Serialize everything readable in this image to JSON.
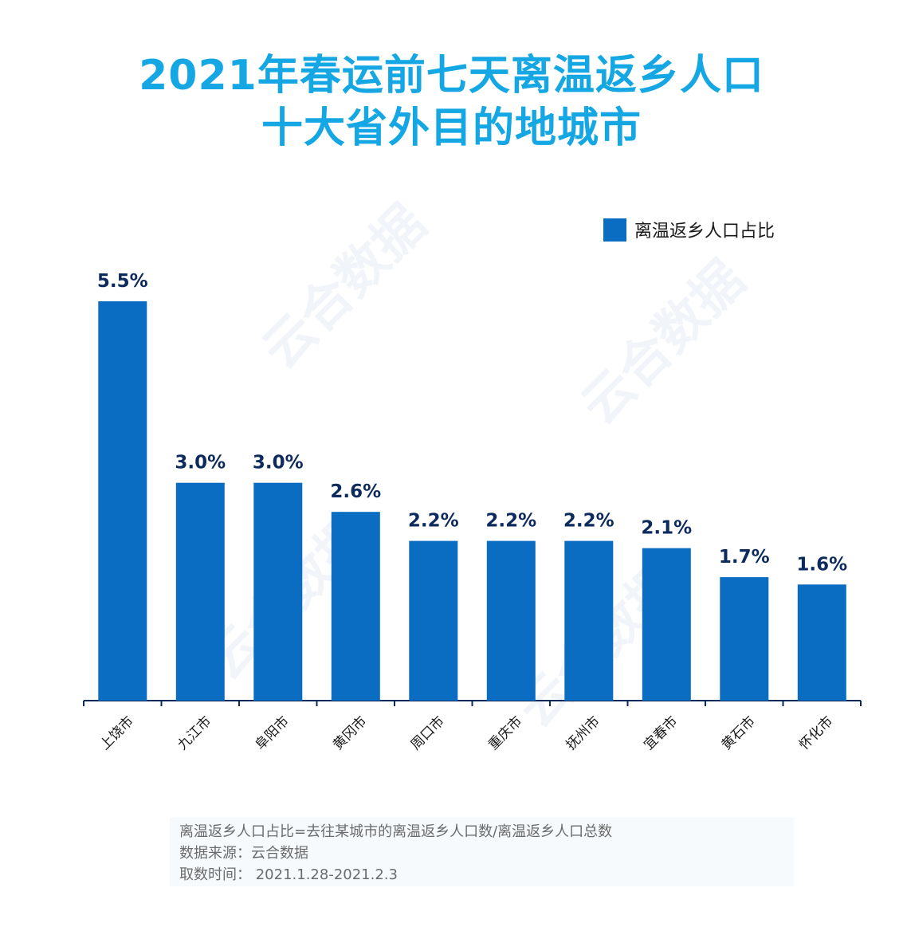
{
  "title_lines": [
    "2021年春运前七天离温返乡人口",
    "十大省外目的地城市"
  ],
  "watermark_text": "云合数据",
  "chart_data": {
    "type": "bar",
    "categories": [
      "上饶市",
      "九江市",
      "阜阳市",
      "黄冈市",
      "周口市",
      "重庆市",
      "抚州市",
      "宜春市",
      "黄石市",
      "怀化市"
    ],
    "series": [
      {
        "name": "离温返乡人口占比",
        "values": [
          5.5,
          3.0,
          3.0,
          2.6,
          2.2,
          2.2,
          2.2,
          2.1,
          1.7,
          1.6
        ],
        "labels": [
          "5.5%",
          "3.0%",
          "3.0%",
          "2.6%",
          "2.2%",
          "2.2%",
          "2.2%",
          "2.1%",
          "1.7%",
          "1.6%"
        ]
      }
    ],
    "ylim": [
      0,
      5.5
    ],
    "grid": false,
    "legend": "top-right",
    "bar_color": "#0a6dc2",
    "label_color": "#0c2a5c",
    "title_color": "#14a7e3"
  },
  "notes": [
    "离温返乡人口占比=去往某城市的离温返乡人口数/离温返乡人口总数",
    "数据来源：云合数据",
    "取数时间： 2021.1.28-2021.2.3"
  ]
}
